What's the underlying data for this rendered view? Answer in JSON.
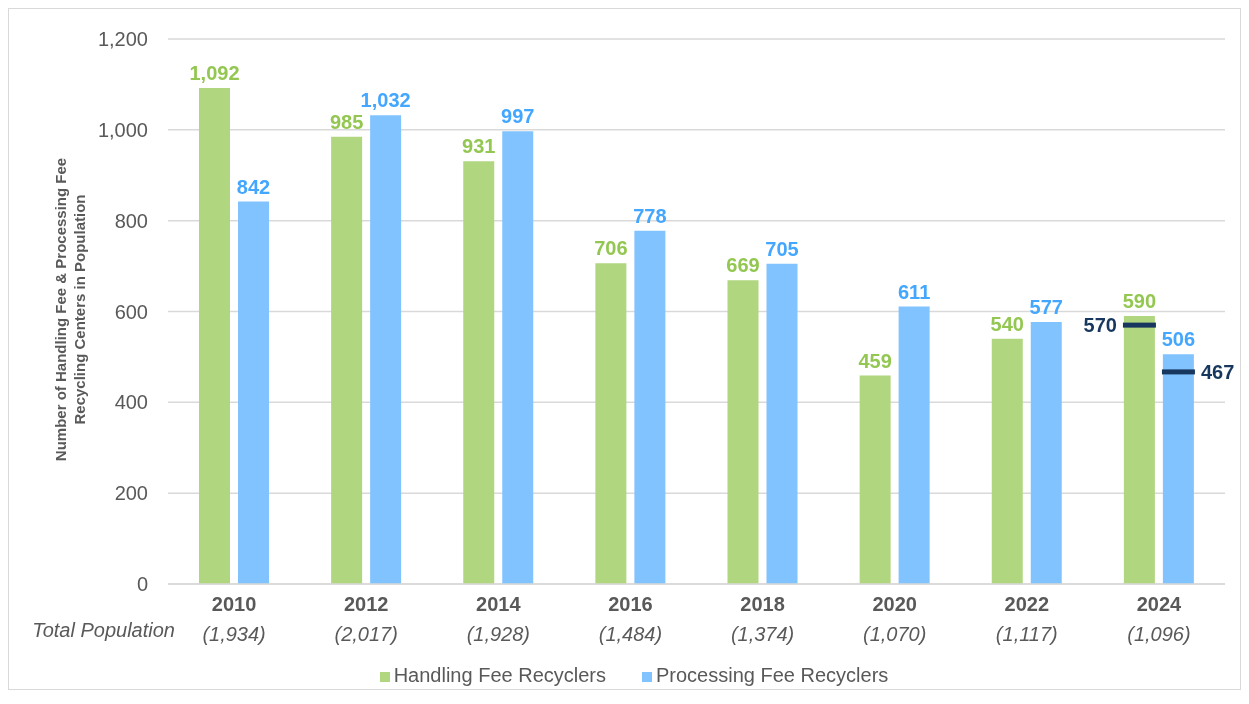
{
  "chart_data": {
    "type": "bar",
    "ylabel": "Number of Handling Fee & Processing Fee Recycling Centers in Population",
    "categories": [
      "2010",
      "2012",
      "2014",
      "2016",
      "2018",
      "2020",
      "2022",
      "2024"
    ],
    "series": [
      {
        "name": "Handling Fee Recyclers",
        "color": "#b0d67f",
        "values": [
          1092,
          985,
          931,
          706,
          669,
          459,
          540,
          590
        ],
        "value_labels": [
          "1,092",
          "985",
          "931",
          "706",
          "669",
          "459",
          "540",
          "590"
        ]
      },
      {
        "name": "Processing Fee Recyclers",
        "color": "#80c3ff",
        "values": [
          842,
          1032,
          997,
          778,
          705,
          611,
          577,
          506
        ],
        "value_labels": [
          "842",
          "1,032",
          "997",
          "778",
          "705",
          "611",
          "577",
          "506"
        ]
      }
    ],
    "ylim": [
      0,
      1200
    ],
    "yticks": [
      0,
      200,
      400,
      600,
      800,
      {
        "value": 1000,
        "label": "1,000"
      },
      {
        "value": 1200,
        "label": "1,200"
      }
    ],
    "grid": "y",
    "legend": "bottom",
    "annotations": [
      "Total Population",
      "(1,934)",
      "(2,017)",
      "(1,928)",
      "(1,484)",
      "(1,374)",
      "(1,070)",
      "(1,117)",
      "(1,096)",
      {
        "text": "570",
        "x": "2024",
        "y": 570
      },
      {
        "text": "467",
        "x": "2024",
        "y": 467
      }
    ]
  }
}
